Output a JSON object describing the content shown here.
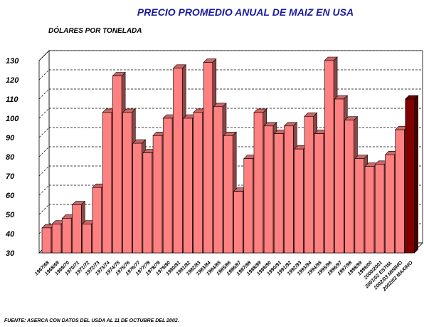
{
  "chart_data": {
    "type": "bar",
    "title": "PRECIO PROMEDIO ANUAL DE MAIZ EN USA",
    "subtitle": "DÓLARES POR TONELADA",
    "note": "FUENTE: ASERCA CON DATOS DEL USDA AL 11 DE OCTUBRE DEL 2002.",
    "categories": [
      "1967/68",
      "1968/69",
      "1969/70",
      "1970/71",
      "1971/72",
      "1972/73",
      "1973/74",
      "1974/75",
      "1975/76",
      "1976/77",
      "1977/78",
      "1978/79",
      "1979/80",
      "1980/81",
      "1981/82",
      "1982/83",
      "1983/84",
      "1984/85",
      "1985/86",
      "1986/87",
      "1987/88",
      "1988/89",
      "1989/90",
      "1990/91",
      "1991/92",
      "1992/93",
      "1993/94",
      "1994/95",
      "1995/96",
      "1996/97",
      "1997/98",
      "1998/99",
      "1999/00",
      "2000/2001",
      "2001/02 ESTIM.",
      "2002/03 MINIMO",
      "2002/03 MAXIMO"
    ],
    "values": [
      43,
      45,
      48,
      55,
      45,
      64,
      103,
      122,
      103,
      87,
      82,
      91,
      100,
      126,
      100,
      103,
      129,
      106,
      91,
      62,
      79,
      103,
      96,
      92,
      96,
      84,
      101,
      92,
      130,
      110,
      99,
      79,
      75,
      76,
      81,
      94,
      110
    ],
    "colors": [
      "#ff8080",
      "#ff8080",
      "#ff8080",
      "#ff8080",
      "#ff8080",
      "#ff8080",
      "#ff8080",
      "#ff8080",
      "#ff8080",
      "#ff8080",
      "#ff8080",
      "#ff8080",
      "#ff8080",
      "#ff8080",
      "#ff8080",
      "#ff8080",
      "#ff8080",
      "#ff8080",
      "#ff8080",
      "#ff8080",
      "#ff8080",
      "#ff8080",
      "#ff8080",
      "#ff8080",
      "#ff8080",
      "#ff8080",
      "#ff8080",
      "#ff8080",
      "#ff8080",
      "#ff8080",
      "#ff8080",
      "#ff8080",
      "#ff8080",
      "#ff8080",
      "#ff8080",
      "#ff8080",
      "#800000"
    ],
    "ylim": [
      30,
      130
    ],
    "yticks": [
      30,
      40,
      50,
      60,
      70,
      80,
      90,
      100,
      110,
      120,
      130
    ],
    "grid": true
  }
}
